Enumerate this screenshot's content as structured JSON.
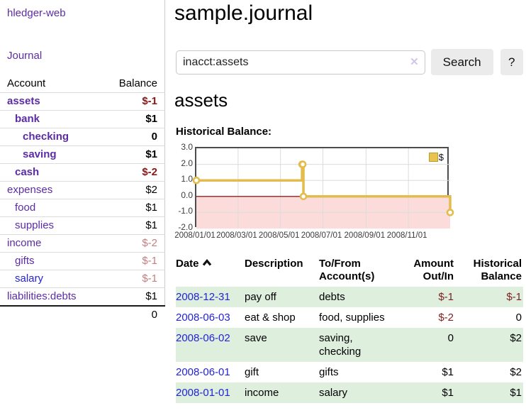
{
  "app": {
    "title": "hledger-web"
  },
  "sidebar": {
    "journal_link": "Journal",
    "accounts_table": {
      "headers": {
        "account": "Account",
        "balance": "Balance"
      },
      "rows": [
        {
          "name": "assets",
          "balance": "$-1",
          "depth": 0,
          "bold": true,
          "name_style": "purple",
          "balance_style": "neg-strong"
        },
        {
          "name": "bank",
          "balance": "$1",
          "depth": 1,
          "bold": true,
          "name_style": "purple",
          "balance_style": "plain"
        },
        {
          "name": "checking",
          "balance": "0",
          "depth": 2,
          "bold": true,
          "name_style": "purple",
          "balance_style": "plain"
        },
        {
          "name": "saving",
          "balance": "$1",
          "depth": 2,
          "bold": true,
          "name_style": "purple",
          "balance_style": "plain"
        },
        {
          "name": "cash",
          "balance": "$-2",
          "depth": 1,
          "bold": true,
          "name_style": "purple",
          "balance_style": "neg-strong"
        },
        {
          "name": "expenses",
          "balance": "$2",
          "depth": 0,
          "bold": false,
          "name_style": "purple",
          "balance_style": "plain"
        },
        {
          "name": "food",
          "balance": "$1",
          "depth": 1,
          "bold": false,
          "name_style": "purple",
          "balance_style": "plain"
        },
        {
          "name": "supplies",
          "balance": "$1",
          "depth": 1,
          "bold": false,
          "name_style": "purple",
          "balance_style": "plain"
        },
        {
          "name": "income",
          "balance": "$-2",
          "depth": 0,
          "bold": false,
          "name_style": "purple",
          "balance_style": "neg-light"
        },
        {
          "name": "gifts",
          "balance": "$-1",
          "depth": 1,
          "bold": false,
          "name_style": "purple",
          "balance_style": "neg-light"
        },
        {
          "name": "salary",
          "balance": "$-1",
          "depth": 1,
          "bold": false,
          "name_style": "blue",
          "balance_style": "neg-light"
        },
        {
          "name": "liabilities:debts",
          "balance": "$1",
          "depth": 0,
          "bold": false,
          "name_style": "purple",
          "balance_style": "plain"
        }
      ],
      "total": "0"
    }
  },
  "header": {
    "title": "sample.journal"
  },
  "search": {
    "value": "inacct:assets",
    "clear_icon": "✕",
    "search_button": "Search",
    "help_button": "?"
  },
  "register": {
    "account_heading": "assets",
    "chart_label": "Historical Balance:",
    "table": {
      "headers": [
        {
          "label": "Date",
          "align": "left",
          "sorted": true
        },
        {
          "label": "Description",
          "align": "left",
          "sorted": false
        },
        {
          "label": "To/From\nAccount(s)",
          "align": "left",
          "sorted": false
        },
        {
          "label": "Amount\nOut/In",
          "align": "right",
          "sorted": false
        },
        {
          "label": "Historical\nBalance",
          "align": "right",
          "sorted": false
        }
      ],
      "rows": [
        {
          "date": "2008-12-31",
          "description": "pay off",
          "accounts": "debts",
          "amount": "$-1",
          "balance": "$-1",
          "amount_neg": true,
          "balance_neg": true,
          "shaded": true
        },
        {
          "date": "2008-06-03",
          "description": "eat & shop",
          "accounts": "food, supplies",
          "amount": "$-2",
          "balance": "0",
          "amount_neg": true,
          "balance_neg": false,
          "shaded": false
        },
        {
          "date": "2008-06-02",
          "description": "save",
          "accounts": "saving, checking",
          "amount": "0",
          "balance": "$2",
          "amount_neg": false,
          "balance_neg": false,
          "shaded": true
        },
        {
          "date": "2008-06-01",
          "description": "gift",
          "accounts": "gifts",
          "amount": "$1",
          "balance": "$2",
          "amount_neg": false,
          "balance_neg": false,
          "shaded": false
        },
        {
          "date": "2008-01-01",
          "description": "income",
          "accounts": "salary",
          "amount": "$1",
          "balance": "$1",
          "amount_neg": false,
          "balance_neg": false,
          "shaded": true
        }
      ]
    }
  },
  "chart_data": {
    "type": "line",
    "step": true,
    "title": "Historical Balance",
    "x": [
      "2008-01-01",
      "2008-06-01",
      "2008-06-02",
      "2008-06-03",
      "2008-12-31"
    ],
    "values": [
      1,
      2,
      2,
      0,
      -1
    ],
    "ylim": [
      -2,
      3
    ],
    "yticks": [
      "3.0",
      "2.0",
      "1.0",
      "0.0",
      "-1.0",
      "-2.0"
    ],
    "xticks": [
      "2008/01/01",
      "2008/03/01",
      "2008/05/01",
      "2008/07/01",
      "2008/09/01",
      "2008/11/01"
    ],
    "legend": [
      {
        "label": "$",
        "color": "#e8c44f"
      }
    ],
    "legend_position": "top-right",
    "grid": true,
    "line_color": "#e3bc4d",
    "marker_fill": "#ffffff",
    "negative_region_color": "#fcdbdb",
    "zero_line_color": "#8b2323",
    "grid_color": "#dcdcdc"
  }
}
